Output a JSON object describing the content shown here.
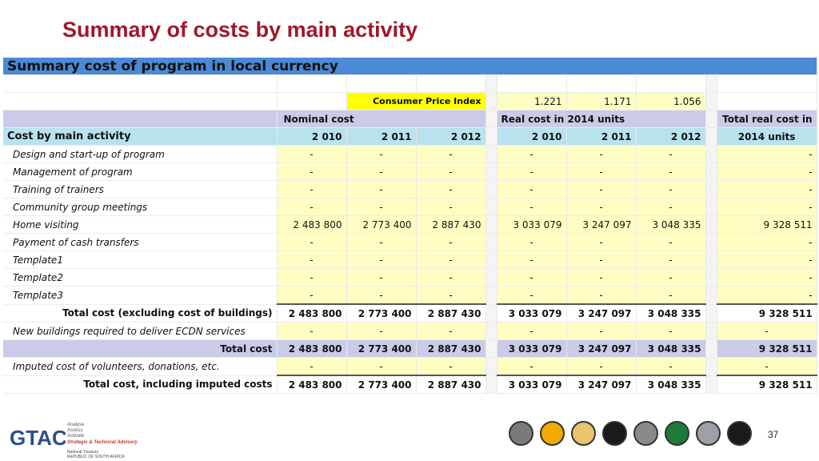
{
  "title": "Summary of costs by main activity",
  "band_title": "Summary cost of program in local currency",
  "cpi": {
    "label": "Consumer Price Index",
    "values": [
      "1.221",
      "1.171",
      "1.056"
    ]
  },
  "headers": {
    "nominal": "Nominal cost",
    "real": "Real cost in 2014 units",
    "total_real": "Total real cost in",
    "total_real_unit": "2014 units",
    "activity": "Cost by main activity",
    "years": [
      "2 010",
      "2 011",
      "2 012"
    ]
  },
  "rows": [
    {
      "label": "Design and start-up of program",
      "nominal": [
        "-",
        "-",
        "-"
      ],
      "real": [
        "-",
        "-",
        "-"
      ],
      "total": "-"
    },
    {
      "label": "Management of program",
      "nominal": [
        "-",
        "-",
        "-"
      ],
      "real": [
        "-",
        "-",
        "-"
      ],
      "total": "-"
    },
    {
      "label": "Training of trainers",
      "nominal": [
        "-",
        "-",
        "-"
      ],
      "real": [
        "-",
        "-",
        "-"
      ],
      "total": "-"
    },
    {
      "label": "Community group meetings",
      "nominal": [
        "-",
        "-",
        "-"
      ],
      "real": [
        "-",
        "-",
        "-"
      ],
      "total": "-"
    },
    {
      "label": "Home visiting",
      "nominal": [
        "2 483 800",
        "2 773 400",
        "2 887 430"
      ],
      "real": [
        "3 033 079",
        "3 247 097",
        "3 048 335"
      ],
      "total": "9 328 511"
    },
    {
      "label": "Payment of cash transfers",
      "nominal": [
        "-",
        "-",
        "-"
      ],
      "real": [
        "-",
        "-",
        "-"
      ],
      "total": "-"
    },
    {
      "label": "Template1",
      "nominal": [
        "-",
        "-",
        "-"
      ],
      "real": [
        "-",
        "-",
        "-"
      ],
      "total": "-"
    },
    {
      "label": "Template2",
      "nominal": [
        "-",
        "-",
        "-"
      ],
      "real": [
        "-",
        "-",
        "-"
      ],
      "total": "-"
    },
    {
      "label": "Template3",
      "nominal": [
        "-",
        "-",
        "-"
      ],
      "real": [
        "-",
        "-",
        "-"
      ],
      "total": "-"
    }
  ],
  "total_excl": {
    "label": "Total cost (excluding cost of buildings)",
    "nominal": [
      "2 483 800",
      "2 773 400",
      "2 887 430"
    ],
    "real": [
      "3 033 079",
      "3 247 097",
      "3 048 335"
    ],
    "total": "9 328 511"
  },
  "buildings": {
    "label": "New buildings required to deliver ECDN services",
    "nominal": [
      "-",
      "-",
      "-"
    ],
    "real": [
      "-",
      "-",
      "-"
    ],
    "total": "-"
  },
  "total_cost": {
    "label": "Total cost",
    "nominal": [
      "2 483 800",
      "2 773 400",
      "2 887 430"
    ],
    "real": [
      "3 033 079",
      "3 247 097",
      "3 048 335"
    ],
    "total": "9 328 511"
  },
  "imputed": {
    "label": "Imputed cost of volunteers, donations, etc.",
    "nominal": [
      "-",
      "-",
      "-"
    ],
    "real": [
      "-",
      "-",
      "-"
    ],
    "total": "-"
  },
  "total_imputed": {
    "label": "Total cost, including imputed costs",
    "nominal": [
      "2 483 800",
      "2 773 400",
      "2 887 430"
    ],
    "real": [
      "3 033 079",
      "3 247 097",
      "3 048 335"
    ],
    "total": "9 328 511"
  },
  "footer": {
    "logo_text": "GTAC",
    "tagline": [
      "Analyse",
      "Assess",
      "Activate"
    ],
    "subtitle": "Strategic & Technical Advisory",
    "treasury": [
      "National Treasury",
      "REPUBLIC OF SOUTH AFRICA"
    ],
    "page_number": "37",
    "icons": [
      "tap-icon",
      "light-bulb-icon",
      "hand-icon",
      "bus-icon",
      "road-icon",
      "book-icon",
      "ribbon-icon",
      "warning-icon"
    ],
    "icon_colors": [
      "#7a7a7a",
      "#f2a900",
      "#e9c46a",
      "#1a1a1a",
      "#8a8a8a",
      "#1f7a3a",
      "#9aa0a6",
      "#1a1a1a"
    ]
  }
}
